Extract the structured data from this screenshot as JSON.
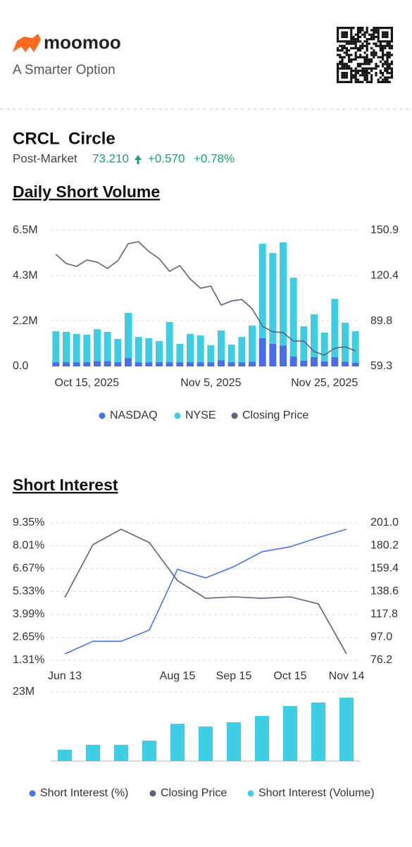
{
  "header": {
    "logo": "moomoo",
    "tagline": "A Smarter Option"
  },
  "quote": {
    "symbol": "CRCL",
    "name": "Circle",
    "session": "Post-Market",
    "price": "73.210",
    "change": "+0.570",
    "change_pct": "+0.78%"
  },
  "chart_data": [
    {
      "type": "bar",
      "title": "Daily Short Volume",
      "stacked": true,
      "grid": true,
      "legend": "bottom",
      "categories": [
        null,
        null,
        null,
        "Oct 15, 2025",
        null,
        null,
        null,
        null,
        null,
        null,
        null,
        null,
        null,
        null,
        null,
        "Nov 5, 2025",
        null,
        null,
        null,
        null,
        null,
        null,
        null,
        null,
        null,
        null,
        "Nov 25, 2025",
        null,
        null,
        null
      ],
      "series": [
        {
          "name": "NASDAQ",
          "color": "#4a6ee8",
          "values": [
            200000,
            200000,
            200000,
            200000,
            250000,
            250000,
            200000,
            400000,
            200000,
            200000,
            200000,
            200000,
            200000,
            200000,
            200000,
            200000,
            300000,
            200000,
            200000,
            230000,
            1350000,
            1080000,
            1000000,
            470000,
            270000,
            440000,
            240000,
            440000,
            220000,
            170000
          ]
        },
        {
          "name": "NYSE",
          "color": "#3fcde3",
          "values": [
            1480000,
            1450000,
            1350000,
            1320000,
            1530000,
            1400000,
            1110000,
            2160000,
            1210000,
            1150000,
            1010000,
            1920000,
            880000,
            1350000,
            1280000,
            810000,
            1420000,
            840000,
            1210000,
            1720000,
            4510000,
            4340000,
            4930000,
            3770000,
            1650000,
            2050000,
            1380000,
            2790000,
            1870000,
            1510000
          ]
        },
        {
          "name": "Closing Price",
          "color": "#5a6378",
          "type": "line",
          "axis": "y2",
          "values": [
            134.8,
            128.6,
            126.7,
            131.0,
            129.5,
            125.3,
            130.5,
            141.9,
            143.3,
            136.7,
            131.9,
            123.4,
            127.2,
            118.2,
            112.0,
            113.4,
            100.6,
            103.4,
            104.4,
            98.2,
            86.4,
            82.6,
            82.1,
            76.4,
            76.4,
            69.3,
            66.9,
            71.6,
            72.6,
            69.7
          ]
        }
      ],
      "ylim": [
        0,
        6500000
      ],
      "yticks": [
        {
          "value": 0,
          "label": "0.0"
        },
        {
          "value": 2170000,
          "label": "2.2M"
        },
        {
          "value": 4330000,
          "label": "4.3M"
        },
        {
          "value": 6500000,
          "label": "6.5M"
        }
      ],
      "y2lim": [
        59.3,
        150.9
      ],
      "y2ticks": [
        59.3,
        89.8,
        120.4,
        150.9
      ]
    },
    {
      "type": "line",
      "title": "Short Interest",
      "grid": true,
      "categories": [
        "Jun 13",
        null,
        null,
        null,
        "Aug 15",
        null,
        "Sep 15",
        null,
        "Oct 15",
        null,
        "Nov 14"
      ],
      "series": [
        {
          "name": "Short Interest (%)",
          "color": "#4a74e8",
          "values": [
            1.68,
            2.42,
            2.42,
            3.08,
            6.63,
            6.13,
            6.79,
            7.66,
            7.95,
            8.49,
            8.98
          ]
        },
        {
          "name": "Closing Price",
          "color": "#5a6378",
          "axis": "y2",
          "values": [
            133.2,
            181.2,
            195.2,
            183.1,
            148.5,
            132.5,
            133.8,
            132.5,
            133.8,
            127.4,
            82.0
          ]
        }
      ],
      "ylim": [
        1.31,
        9.35
      ],
      "yticks": [
        {
          "value": 1.31,
          "label": "1.31%"
        },
        {
          "value": 2.65,
          "label": "2.65%"
        },
        {
          "value": 3.99,
          "label": "3.99%"
        },
        {
          "value": 5.33,
          "label": "5.33%"
        },
        {
          "value": 6.67,
          "label": "6.67%"
        },
        {
          "value": 8.01,
          "label": "8.01%"
        },
        {
          "value": 9.35,
          "label": "9.35%"
        }
      ],
      "y2lim": [
        76.2,
        201.0
      ],
      "y2ticks": [
        76.2,
        {
          "value": 97.0,
          "label": "97.0"
        },
        117.8,
        138.6,
        159.4,
        180.2,
        {
          "value": 201.0,
          "label": "201.0"
        }
      ]
    },
    {
      "type": "bar",
      "grid": true,
      "legend": "bottom",
      "series": [
        {
          "name": "Short Interest (Volume)",
          "color": "#3fcde3",
          "values": [
            3800000,
            5400000,
            5400000,
            6800000,
            12400000,
            11500000,
            12900000,
            15000000,
            18300000,
            19500000,
            21100000
          ]
        }
      ],
      "ylim": [
        0,
        23000000
      ],
      "yticks": [
        {
          "value": 23000000,
          "label": "23M"
        }
      ]
    }
  ]
}
